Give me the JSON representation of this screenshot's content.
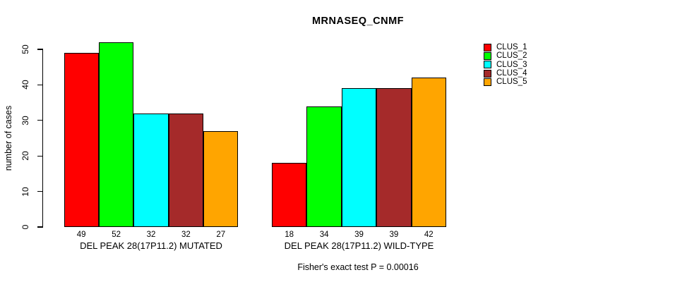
{
  "chart_data": {
    "type": "bar",
    "title": "MRNASEQ_CNMF",
    "ylabel": "number of cases",
    "xlabel": "",
    "ylim": [
      0,
      50
    ],
    "yticks": [
      0,
      10,
      20,
      30,
      40,
      50
    ],
    "grid": false,
    "legend_position": "top-right",
    "categories": [
      "DEL PEAK 28(17P11.2) MUTATED",
      "DEL PEAK 28(17P11.2) WILD-TYPE"
    ],
    "series": [
      {
        "name": "CLUS_1",
        "color": "#FF0000",
        "values": [
          49,
          18
        ]
      },
      {
        "name": "CLUS_2",
        "color": "#00FF00",
        "values": [
          52,
          34
        ]
      },
      {
        "name": "CLUS_3",
        "color": "#00FFFF",
        "values": [
          32,
          39
        ]
      },
      {
        "name": "CLUS_4",
        "color": "#A52A2A",
        "values": [
          32,
          39
        ]
      },
      {
        "name": "CLUS_5",
        "color": "#FFA500",
        "values": [
          27,
          42
        ]
      }
    ],
    "annotation": "Fisher's exact test P = 0.00016"
  }
}
